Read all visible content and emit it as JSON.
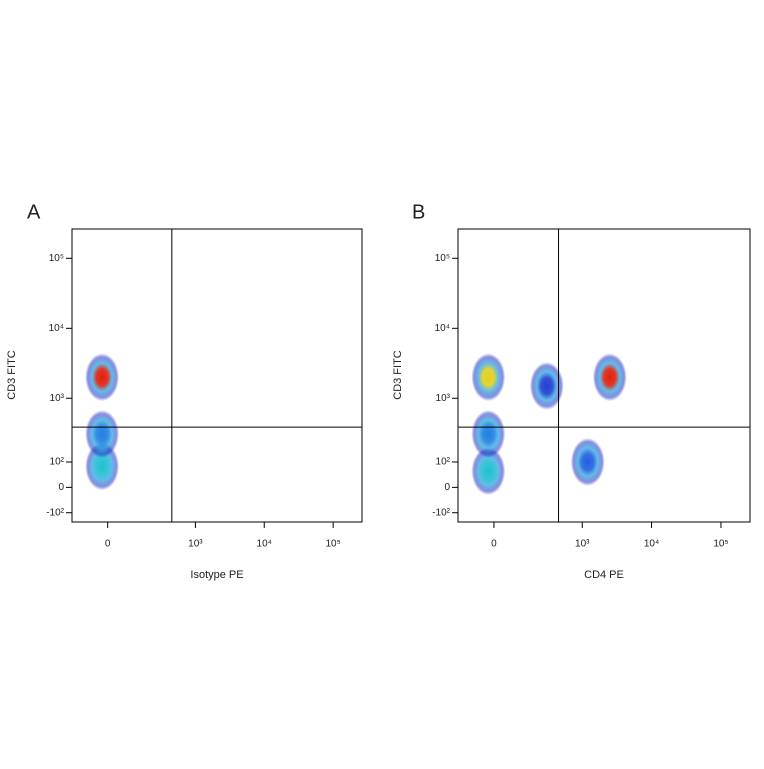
{
  "chart_data": [
    {
      "type": "scatter",
      "title": "A",
      "xlabel": "Isotype PE",
      "ylabel": "CD3 FITC",
      "xscale": "biexponential",
      "yscale": "biexponential",
      "xlim": [
        -160,
        262144
      ],
      "ylim": [
        -150,
        262144
      ],
      "xticks": [
        {
          "value": 0,
          "label": "0"
        },
        {
          "value": 1000,
          "label": "10³"
        },
        {
          "value": 10000,
          "label": "10⁴"
        },
        {
          "value": 100000,
          "label": "10⁵"
        }
      ],
      "yticks": [
        {
          "value": -100,
          "label": "-10²"
        },
        {
          "value": 0,
          "label": "0"
        },
        {
          "value": 100,
          "label": "10²"
        },
        {
          "value": 1000,
          "label": "10³"
        },
        {
          "value": 10000,
          "label": "10⁴"
        },
        {
          "value": 100000,
          "label": "10⁵"
        }
      ],
      "gate": {
        "x": 450,
        "y": 380
      },
      "clusters": [
        {
          "x": -20,
          "y": 80,
          "color": "#20c0d0"
        },
        {
          "x": -20,
          "y": 300,
          "color": "#2080e0"
        },
        {
          "x": -20,
          "y": 2000,
          "color": "#e02010"
        }
      ]
    },
    {
      "type": "scatter",
      "title": "B",
      "xlabel": "CD4 PE",
      "ylabel": "CD3 FITC",
      "xscale": "biexponential",
      "yscale": "biexponential",
      "xlim": [
        -160,
        262144
      ],
      "ylim": [
        -150,
        262144
      ],
      "xticks": [
        {
          "value": 0,
          "label": "0"
        },
        {
          "value": 1000,
          "label": "10³"
        },
        {
          "value": 10000,
          "label": "10⁴"
        },
        {
          "value": 100000,
          "label": "10⁵"
        }
      ],
      "yticks": [
        {
          "value": -100,
          "label": "-10²"
        },
        {
          "value": 0,
          "label": "0"
        },
        {
          "value": 100,
          "label": "10²"
        },
        {
          "value": 1000,
          "label": "10³"
        },
        {
          "value": 10000,
          "label": "10⁴"
        },
        {
          "value": 100000,
          "label": "10⁵"
        }
      ],
      "gate": {
        "x": 450,
        "y": 380
      },
      "clusters": [
        {
          "x": -20,
          "y": 60,
          "color": "#20c0d0"
        },
        {
          "x": -20,
          "y": 300,
          "color": "#2080e0"
        },
        {
          "x": -20,
          "y": 2000,
          "color": "#e0d020"
        },
        {
          "x": 300,
          "y": 1500,
          "color": "#2040d0"
        },
        {
          "x": 1200,
          "y": 100,
          "color": "#2060e0"
        },
        {
          "x": 2500,
          "y": 2000,
          "color": "#e02010"
        }
      ]
    }
  ]
}
